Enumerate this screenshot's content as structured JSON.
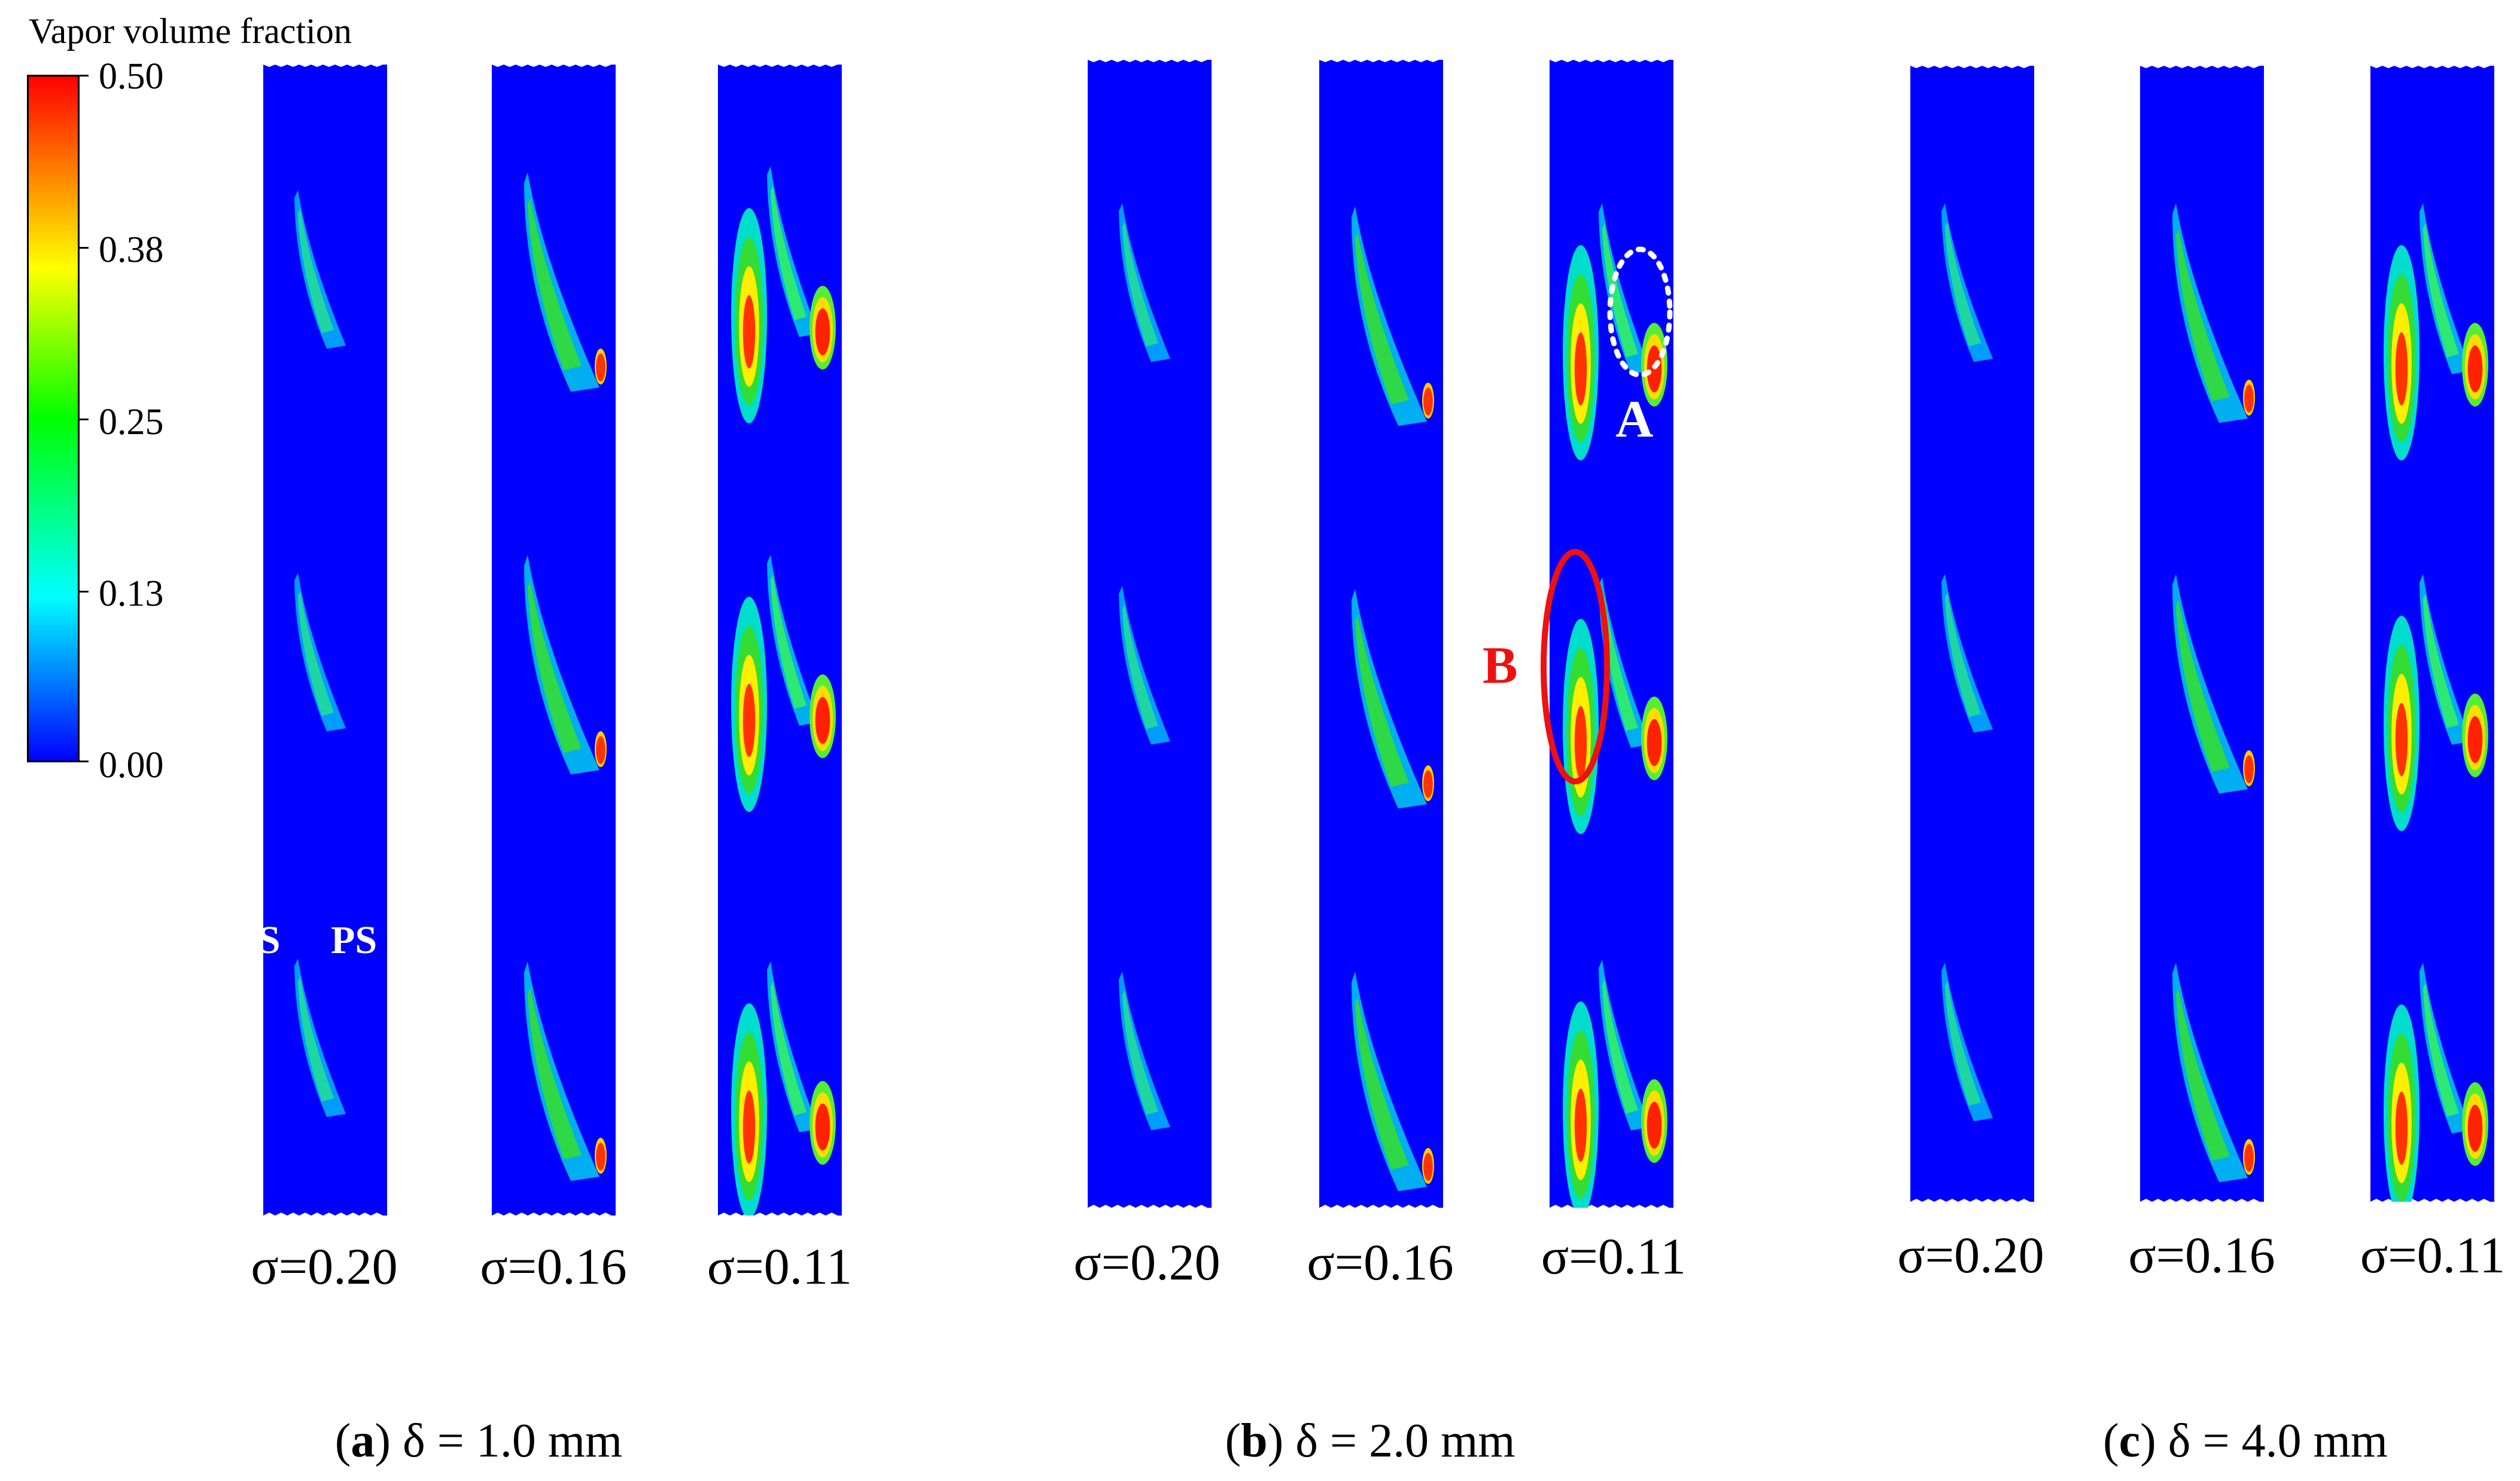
{
  "colorbar": {
    "title": "Vapor volume fraction",
    "ticks": [
      "0.50",
      "0.38",
      "0.25",
      "0.13",
      "0.00"
    ],
    "colors": [
      "#0000ff",
      "#00ffff",
      "#00ff00",
      "#ffff00",
      "#ff8000",
      "#ff0000"
    ]
  },
  "groups": [
    {
      "letter": "a",
      "caption_rest": ") δ = 1.0 mm",
      "sigmas": [
        "σ=0.20",
        "σ=0.16",
        "σ=0.11"
      ]
    },
    {
      "letter": "b",
      "caption_rest": ") δ = 2.0 mm",
      "sigmas": [
        "σ=0.20",
        "σ=0.16",
        "σ=0.11"
      ]
    },
    {
      "letter": "c",
      "caption_rest": ") δ = 4.0 mm",
      "sigmas": [
        "σ=0.20",
        "σ=0.16",
        "σ=0.11"
      ]
    }
  ],
  "annotations": {
    "ss": "SS",
    "ps": "PS",
    "a": "A",
    "b": "B",
    "a_color": "#ffffff",
    "b_color": "#ee1111"
  },
  "panel_color": "#0000ff"
}
